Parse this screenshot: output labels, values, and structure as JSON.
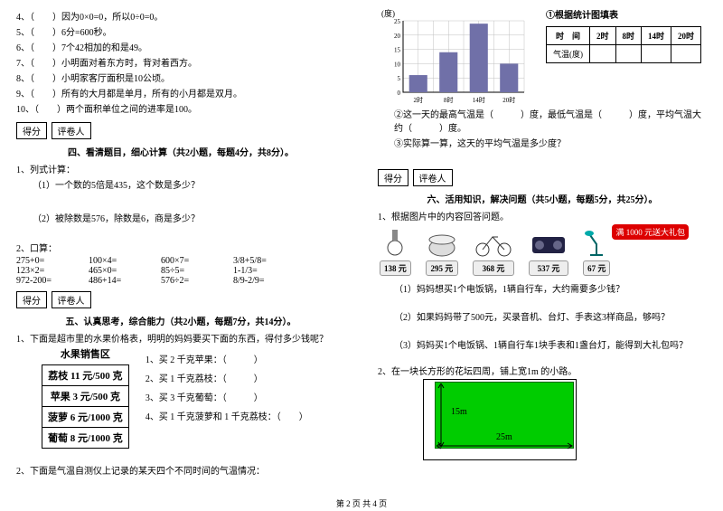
{
  "left": {
    "judge": [
      "4、（　　）因为0×0=0，所以0÷0=0。",
      "5、（　　）6分=600秒。",
      "6、（　　）7个42相加的和是49。",
      "7、（　　）小明面对着东方时，背对着西方。",
      "8、（　　）小明家客厅面积是10公顷。",
      "9、（　　）所有的大月都是单月，所有的小月都是双月。",
      "10、（　　）两个面积单位之间的进率是100。"
    ],
    "score_label_a": "得分",
    "score_label_b": "评卷人",
    "sec4_title": "四、看清题目，细心计算（共2小题，每题4分，共8分）。",
    "q1": "1、列式计算：",
    "q1a": "（1）一个数的5倍是435，这个数是多少？",
    "q1b": "（2）被除数是576，除数是6，商是多少？",
    "q2": "2、口算：",
    "calc": [
      [
        "275+0=",
        "100×4=",
        "600×7=",
        "3/8+5/8="
      ],
      [
        "123×2=",
        "465×0=",
        "85÷5=",
        "1-1/3="
      ],
      [
        "972-200=",
        "486+14=",
        "576÷2=",
        "8/9-2/9="
      ]
    ],
    "sec5_title": "五、认真思考，综合能力（共2小题，每题7分，共14分）。",
    "q51": "1、下面是超市里的水果价格表，明明的妈妈要买下面的东西，得付多少钱呢？",
    "price_header": "水果销售区",
    "prices": [
      "荔枝 11 元/500 克",
      "苹果 3 元/500 克",
      "菠萝 6 元/1000 克",
      "葡萄 8 元/1000 克"
    ],
    "buys": [
      "1、买 2 千克苹果：（　　　）",
      "2、买 1 千克荔枝：（　　　）",
      "3、买 3 千克葡萄：（　　　）",
      "4、买 1 千克菠萝和 1 千克荔枝：（　　）"
    ],
    "q52": "2、下面是气温自测仪上记录的某天四个不同时间的气温情况："
  },
  "right": {
    "chart_ylabel": "(度)",
    "chart_title": "①根据统计图填表",
    "chart_ylim": [
      0,
      25
    ],
    "chart_ytick_step": 5,
    "chart_xticks": [
      "2时",
      "8时",
      "14时",
      "20时"
    ],
    "chart_values": [
      6,
      14,
      24,
      10
    ],
    "chart_bar_color": "#7070a8",
    "chart_grid_color": "#c0c0c0",
    "temp_headers": [
      "时　间",
      "2时",
      "8时",
      "14时",
      "20时"
    ],
    "temp_row": "气温(度)",
    "q_a": "②这一天的最高气温是（　　　）度，最低气温是（　　　）度，平均气温大约（　　　）度。",
    "q_b": "③实际算一算，这天的平均气温是多少度？",
    "score_label_a": "得分",
    "score_label_b": "评卷人",
    "sec6_title": "六、活用知识，解决问题（共5小题，每题5分，共25分）。",
    "q61": "1、根据图片中的内容回答问题。",
    "gift": "满 1000 元送大礼包",
    "items": [
      {
        "name": "watch",
        "price": "138 元"
      },
      {
        "name": "cooker",
        "price": "295 元"
      },
      {
        "name": "bike",
        "price": "368 元"
      },
      {
        "name": "radio",
        "price": "537 元"
      },
      {
        "name": "lamp",
        "price": "67 元"
      }
    ],
    "q61a": "（1）妈妈想买1个电饭锅，1辆自行车，大约需要多少钱？",
    "q61b": "（2）如果妈妈带了500元，买录音机、台灯、手表这3样商品，够吗？",
    "q61c": "（3）妈妈买1个电饭锅、1辆自行车1块手表和1盏台灯，能得到大礼包吗？",
    "q62": "2、在一块长方形的花坛四周，铺上宽1m 的小路。",
    "lawn_w": "25m",
    "lawn_h": "15m"
  },
  "footer": "第 2 页  共 4 页"
}
